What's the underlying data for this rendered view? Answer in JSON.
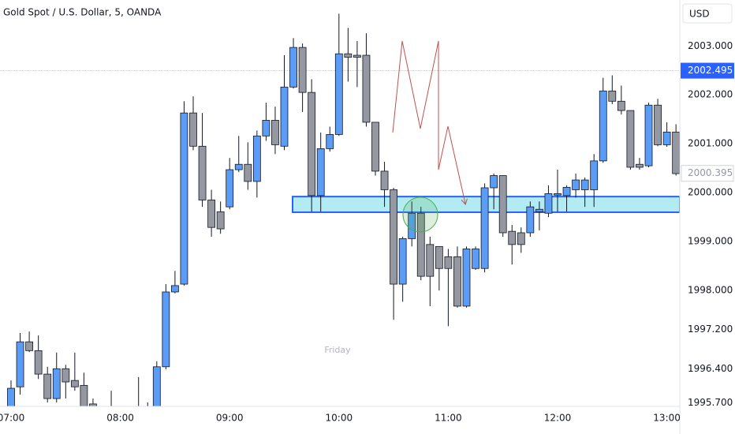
{
  "chart_data": {
    "type": "candlestick",
    "title": "Gold Spot / U.S. Dollar, 5, OANDA",
    "currency": "USD",
    "annotation": "Friday",
    "categories": [
      "07:00",
      null,
      null,
      null,
      null,
      null,
      null,
      null,
      null,
      null,
      null,
      null,
      "08:00",
      null,
      null,
      null,
      null,
      null,
      null,
      null,
      null,
      null,
      null,
      null,
      "09:00",
      null,
      null,
      null,
      null,
      null,
      null,
      null,
      null,
      null,
      null,
      null,
      "10:00",
      null,
      null,
      null,
      null,
      null,
      null,
      null,
      null,
      null,
      null,
      null,
      "11:00",
      null,
      null,
      null,
      null,
      null,
      null,
      null,
      null,
      null,
      null,
      null,
      "12:00",
      null,
      null,
      null,
      null,
      null,
      null,
      null,
      null,
      null,
      null,
      null,
      "13:00",
      null
    ],
    "open": [
      1995.63,
      1996.03,
      1996.95,
      1996.77,
      1996.29,
      1995.79,
      1996.4,
      1996.16,
      1996.06,
      1995.68,
      1995.31,
      1995.47,
      1995.31,
      1995.42,
      1995.31,
      1995.47,
      1995.58,
      1996.44,
      1997.97,
      1998.13,
      2001.63,
      2000.95,
      1999.85,
      1999.61,
      1999.71,
      2000.47,
      2000.58,
      2000.23,
      2001.16,
      2001.48,
      2000.95,
      2002.16,
      2002.97,
      2002.05,
      1999.94,
      2000.9,
      2001.19,
      2002.84,
      2002.81,
      2002.81,
      2001.44,
      2000.44,
      2000.06,
      1998.13,
      1999.06,
      1999.58,
      1998.94,
      1998.9,
      1998.69,
      1998.69,
      1997.68,
      1998.45,
      1998.45,
      2000.1,
      2000.35,
      1999.21,
      1999.18,
      1999.18,
      1999.61,
      1999.58,
      1999.95,
      1999.94,
      2000.06,
      2000.06,
      2000.06,
      2000.65,
      2002.08,
      2001.87,
      2001.68,
      2000.58,
      2000.55,
      2001.79,
      2000.98,
      2001.24
    ],
    "high": [
      1996.16,
      1997.13,
      1997.16,
      1997.08,
      1996.44,
      1996.73,
      1996.48,
      1996.73,
      1996.32,
      1995.79,
      1995.55,
      1995.95,
      1995.58,
      1995.55,
      1996.23,
      1995.71,
      1996.55,
      1998.13,
      1998.4,
      2001.87,
      2001.97,
      2001.63,
      2000.06,
      1999.82,
      2000.71,
      2001.16,
      2001.03,
      2001.27,
      2001.84,
      2001.76,
      2002.81,
      2003.16,
      2003.05,
      2002.32,
      2001.23,
      2001.35,
      2003.66,
      2003.37,
      2003.1,
      2003.26,
      2001.44,
      2000.63,
      2000.1,
      1999.1,
      1999.82,
      1999.71,
      1999.1,
      1998.9,
      1998.85,
      1998.9,
      1998.9,
      1998.9,
      2000.19,
      2000.39,
      2000.35,
      1999.34,
      1999.29,
      1999.82,
      1999.82,
      2000.15,
      2000.47,
      2000.15,
      2000.39,
      2000.31,
      2000.79,
      2002.35,
      2002.4,
      2002.19,
      2001.68,
      2000.71,
      2001.84,
      2001.92,
      2001.44,
      2001.4
    ],
    "low": [
      1995.63,
      1995.87,
      1996.74,
      1996.19,
      1995.71,
      1995.71,
      1995.79,
      1995.95,
      1995.63,
      1995.23,
      1995.15,
      1995.23,
      1995.15,
      1995.15,
      1995.23,
      1995.31,
      1995.55,
      1996.39,
      1997.94,
      1998.1,
      2000.87,
      1999.71,
      1999.1,
      1999.16,
      1999.66,
      2000.42,
      2000.06,
      1999.9,
      2001.06,
      2000.79,
      2000.87,
      2002.13,
      2001.65,
      1999.61,
      1999.61,
      2000.84,
      2001.16,
      2002.27,
      2002.16,
      2001.35,
      2000.35,
      1999.71,
      1997.4,
      1997.77,
      1998.9,
      1998.21,
      1997.68,
      1998.0,
      1997.27,
      1997.65,
      1997.65,
      1998.42,
      1998.37,
      1999.66,
      1999.1,
      1998.53,
      1998.77,
      1999.1,
      1999.23,
      1999.5,
      1999.61,
      1999.61,
      1999.9,
      1999.71,
      1999.71,
      2000.61,
      2001.81,
      2001.6,
      2000.47,
      2000.47,
      2000.52,
      2000.95,
      2000.94,
      2000.35
    ],
    "close": [
      1996.0,
      1996.95,
      1996.77,
      1996.29,
      1995.79,
      1996.4,
      1996.13,
      1996.03,
      1995.63,
      1995.39,
      1995.47,
      1995.39,
      1995.42,
      1995.31,
      1995.55,
      1995.58,
      1996.44,
      1997.97,
      1998.1,
      2001.63,
      2000.95,
      1999.85,
      1999.29,
      1999.26,
      2000.47,
      2000.58,
      2000.23,
      2001.16,
      2001.48,
      2000.98,
      2002.16,
      2002.97,
      2002.05,
      1999.94,
      2000.9,
      2001.19,
      2002.84,
      2002.77,
      2002.77,
      2001.44,
      2000.44,
      2000.06,
      1998.13,
      1999.06,
      1999.58,
      1998.29,
      1998.29,
      1998.45,
      1998.45,
      1997.68,
      1998.85,
      1998.85,
      2000.1,
      2000.35,
      1999.18,
      1998.94,
      1998.94,
      1999.71,
      1999.66,
      1999.98,
      1999.98,
      2000.11,
      2000.26,
      2000.26,
      2000.65,
      2002.08,
      2001.87,
      2001.68,
      2000.52,
      2000.52,
      2001.79,
      2000.98,
      2001.24,
      2000.39
    ],
    "up_color": "#5b9cf6",
    "down_color": "#9598a1",
    "ylim": [
      1995.63,
      2003.94
    ],
    "yticks": [
      {
        "value": 2003,
        "label": "2003.000"
      },
      {
        "value": 2002,
        "label": "2002.000"
      },
      {
        "value": 2001,
        "label": "2001.000"
      },
      {
        "value": 2000,
        "label": "2000.000"
      },
      {
        "value": 1999,
        "label": "1999.000"
      },
      {
        "value": 1998,
        "label": "1998.000"
      },
      {
        "value": 1997.2,
        "label": "1997.200"
      },
      {
        "value": 1996.4,
        "label": "1996.400"
      },
      {
        "value": 1995.7,
        "label": "1995.700"
      }
    ],
    "grid": false,
    "price_lines": [
      {
        "value": 2002.495,
        "label": "2002.495",
        "color": "#2962ff",
        "highlight": true
      },
      {
        "value": 2000.395,
        "label": "2000.395",
        "color": "#9598a1",
        "highlight": false
      }
    ],
    "zone": {
      "low": 1999.6,
      "high": 1999.92,
      "color": "#b2ebf2",
      "border": "#2962ff"
    }
  }
}
